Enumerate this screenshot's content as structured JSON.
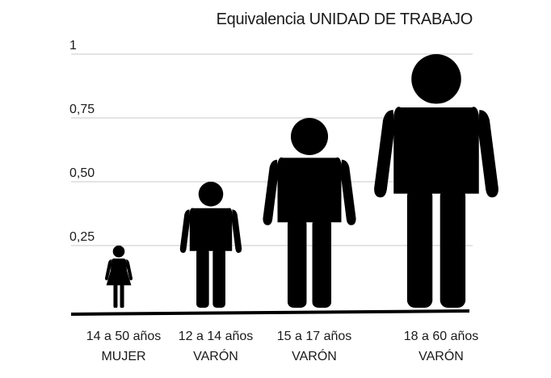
{
  "chart_data": {
    "type": "bar",
    "title": "Equivalencia UNIDAD DE TRABAJO",
    "yticks": [
      "1",
      "0,75",
      "0,50",
      "0,25"
    ],
    "ytick_values": [
      1,
      0.75,
      0.5,
      0.25
    ],
    "ylim": [
      0,
      1
    ],
    "grid": true,
    "categories": [
      {
        "line1": "14 a 50 años",
        "line2": "MUJER",
        "figure": "woman-icon"
      },
      {
        "line1": "12 a 14 años",
        "line2": "VARÓN",
        "figure": "man-icon"
      },
      {
        "line1": "15 a 17 años",
        "line2": "VARÓN",
        "figure": "man-icon"
      },
      {
        "line1": "18 a 60 años",
        "line2": "VARÓN",
        "figure": "man-icon"
      }
    ],
    "values": [
      0.25,
      0.5,
      0.75,
      1.0
    ],
    "color": "#000000"
  }
}
